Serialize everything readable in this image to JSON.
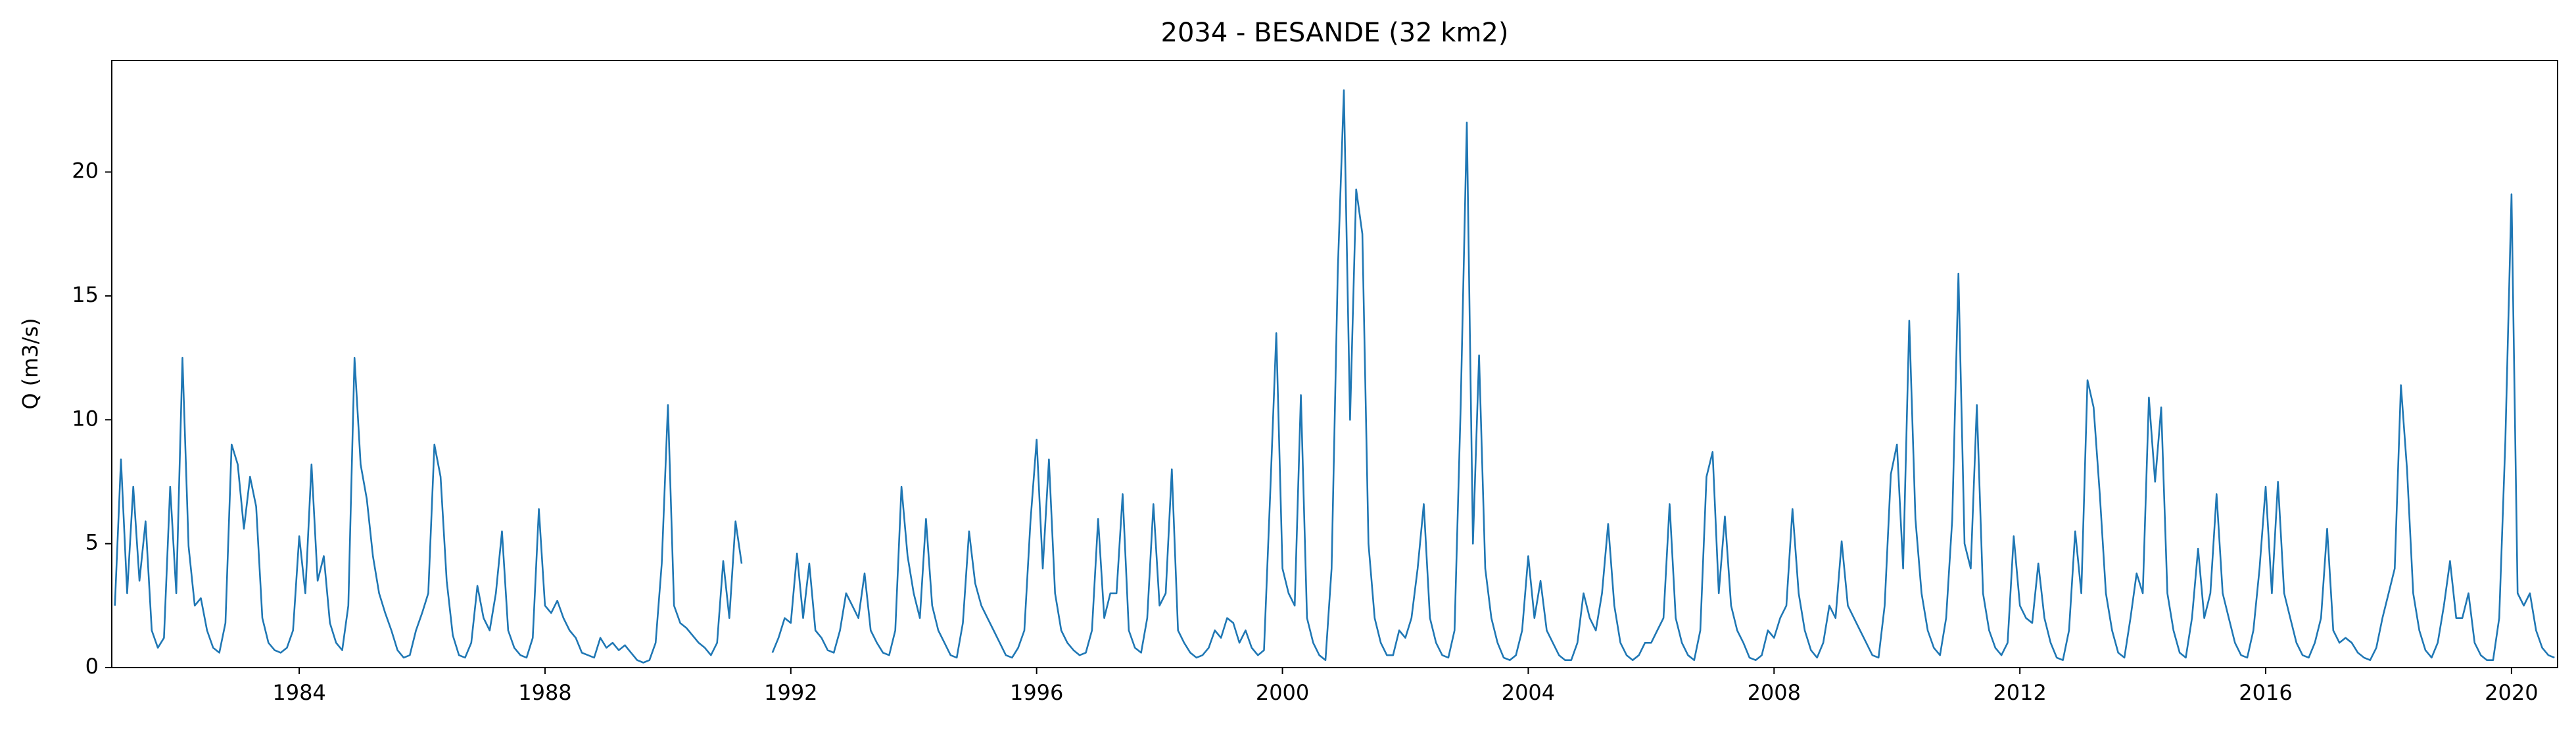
{
  "chart_data": {
    "type": "line",
    "title": "2034 - BESANDE (32 km2)",
    "ylabel": "Q (m3/s)",
    "xlim": [
      1980.95,
      2020.75
    ],
    "xticks": [
      1984,
      1988,
      1992,
      1996,
      2000,
      2004,
      2008,
      2012,
      2016,
      2020
    ],
    "ylim": [
      0,
      24.5
    ],
    "yticks": [
      0,
      5,
      10,
      15,
      20
    ],
    "grid": false,
    "series": [
      {
        "color": "#1f77b4",
        "x": [
          1981.0,
          1981.1,
          1981.2,
          1981.3,
          1981.4,
          1981.5,
          1981.6,
          1981.7,
          1981.8,
          1981.9,
          1982.0,
          1982.1,
          1982.2,
          1982.3,
          1982.4,
          1982.5,
          1982.6,
          1982.7,
          1982.8,
          1982.9,
          1983.0,
          1983.1,
          1983.2,
          1983.3,
          1983.4,
          1983.5,
          1983.6,
          1983.7,
          1983.8,
          1983.9,
          1984.0,
          1984.1,
          1984.2,
          1984.3,
          1984.4,
          1984.5,
          1984.6,
          1984.7,
          1984.8,
          1984.9,
          1985.0,
          1985.1,
          1985.2,
          1985.3,
          1985.4,
          1985.5,
          1985.6,
          1985.7,
          1985.8,
          1985.9,
          1986.0,
          1986.1,
          1986.2,
          1986.3,
          1986.4,
          1986.5,
          1986.6,
          1986.7,
          1986.8,
          1986.9,
          1987.0,
          1987.1,
          1987.2,
          1987.3,
          1987.4,
          1987.5,
          1987.6,
          1987.7,
          1987.8,
          1987.9,
          1988.0,
          1988.1,
          1988.2,
          1988.3,
          1988.4,
          1988.5,
          1988.6,
          1988.7,
          1988.8,
          1988.9,
          1989.0,
          1989.1,
          1989.2,
          1989.3,
          1989.4,
          1989.5,
          1989.6,
          1989.7,
          1989.8,
          1989.9,
          1990.0,
          1990.1,
          1990.2,
          1990.3,
          1990.4,
          1990.5,
          1990.6,
          1990.7,
          1990.8,
          1990.9,
          1991.0,
          1991.1,
          1991.2,
          1991.3,
          1991.4,
          1991.5,
          1991.6,
          1991.7,
          1991.8,
          1991.9,
          1992.0,
          1992.1,
          1992.2,
          1992.3,
          1992.4,
          1992.5,
          1992.6,
          1992.7,
          1992.8,
          1992.9,
          1993.0,
          1993.1,
          1993.2,
          1993.3,
          1993.4,
          1993.5,
          1993.6,
          1993.7,
          1993.8,
          1993.9,
          1994.0,
          1994.1,
          1994.2,
          1994.3,
          1994.4,
          1994.5,
          1994.6,
          1994.7,
          1994.8,
          1994.9,
          1995.0,
          1995.1,
          1995.2,
          1995.3,
          1995.4,
          1995.5,
          1995.6,
          1995.7,
          1995.8,
          1995.9,
          1996.0,
          1996.1,
          1996.2,
          1996.3,
          1996.4,
          1996.5,
          1996.6,
          1996.7,
          1996.8,
          1996.9,
          1997.0,
          1997.1,
          1997.2,
          1997.3,
          1997.4,
          1997.5,
          1997.6,
          1997.7,
          1997.8,
          1997.9,
          1998.0,
          1998.1,
          1998.2,
          1998.3,
          1998.4,
          1998.5,
          1998.6,
          1998.7,
          1998.8,
          1998.9,
          1999.0,
          1999.1,
          1999.2,
          1999.3,
          1999.4,
          1999.5,
          1999.6,
          1999.7,
          1999.8,
          1999.9,
          2000.0,
          2000.1,
          2000.2,
          2000.3,
          2000.4,
          2000.5,
          2000.6,
          2000.7,
          2000.8,
          2000.9,
          2001.0,
          2001.1,
          2001.2,
          2001.3,
          2001.4,
          2001.5,
          2001.6,
          2001.7,
          2001.8,
          2001.9,
          2002.0,
          2002.1,
          2002.2,
          2002.3,
          2002.4,
          2002.5,
          2002.6,
          2002.7,
          2002.8,
          2002.9,
          2003.0,
          2003.1,
          2003.2,
          2003.3,
          2003.4,
          2003.5,
          2003.6,
          2003.7,
          2003.8,
          2003.9,
          2004.0,
          2004.1,
          2004.2,
          2004.3,
          2004.4,
          2004.5,
          2004.6,
          2004.7,
          2004.8,
          2004.9,
          2005.0,
          2005.1,
          2005.2,
          2005.3,
          2005.4,
          2005.5,
          2005.6,
          2005.7,
          2005.8,
          2005.9,
          2006.0,
          2006.1,
          2006.2,
          2006.3,
          2006.4,
          2006.5,
          2006.6,
          2006.7,
          2006.8,
          2006.9,
          2007.0,
          2007.1,
          2007.2,
          2007.3,
          2007.4,
          2007.5,
          2007.6,
          2007.7,
          2007.8,
          2007.9,
          2008.0,
          2008.1,
          2008.2,
          2008.3,
          2008.4,
          2008.5,
          2008.6,
          2008.7,
          2008.8,
          2008.9,
          2009.0,
          2009.1,
          2009.2,
          2009.3,
          2009.4,
          2009.5,
          2009.6,
          2009.7,
          2009.8,
          2009.9,
          2010.0,
          2010.1,
          2010.2,
          2010.3,
          2010.4,
          2010.5,
          2010.6,
          2010.7,
          2010.8,
          2010.9,
          2011.0,
          2011.1,
          2011.2,
          2011.3,
          2011.4,
          2011.5,
          2011.6,
          2011.7,
          2011.8,
          2011.9,
          2012.0,
          2012.1,
          2012.2,
          2012.3,
          2012.4,
          2012.5,
          2012.6,
          2012.7,
          2012.8,
          2012.9,
          2013.0,
          2013.1,
          2013.2,
          2013.3,
          2013.4,
          2013.5,
          2013.6,
          2013.7,
          2013.8,
          2013.9,
          2014.0,
          2014.1,
          2014.2,
          2014.3,
          2014.4,
          2014.5,
          2014.6,
          2014.7,
          2014.8,
          2014.9,
          2015.0,
          2015.1,
          2015.2,
          2015.3,
          2015.4,
          2015.5,
          2015.6,
          2015.7,
          2015.8,
          2015.9,
          2016.0,
          2016.1,
          2016.2,
          2016.3,
          2016.4,
          2016.5,
          2016.6,
          2016.7,
          2016.8,
          2016.9,
          2017.0,
          2017.1,
          2017.2,
          2017.3,
          2017.4,
          2017.5,
          2017.6,
          2017.7,
          2017.8,
          2017.9,
          2018.0,
          2018.1,
          2018.2,
          2018.3,
          2018.4,
          2018.5,
          2018.6,
          2018.7,
          2018.8,
          2018.9,
          2019.0,
          2019.1,
          2019.2,
          2019.3,
          2019.4,
          2019.5,
          2019.6,
          2019.7,
          2019.8,
          2019.9,
          2020.0,
          2020.1,
          2020.2,
          2020.3,
          2020.4,
          2020.5,
          2020.6,
          2020.7
        ],
        "values": [
          2.5,
          8.4,
          3,
          7.3,
          3.5,
          5.9,
          1.5,
          0.8,
          1.2,
          7.3,
          3,
          12.5,
          4.9,
          2.5,
          2.8,
          1.5,
          0.8,
          0.6,
          1.8,
          9,
          8.2,
          5.6,
          7.7,
          6.5,
          2,
          1,
          0.7,
          0.6,
          0.8,
          1.5,
          5.3,
          3,
          8.2,
          3.5,
          4.5,
          1.8,
          1,
          0.7,
          2.5,
          12.5,
          8.2,
          6.8,
          4.5,
          3,
          2.2,
          1.5,
          0.7,
          0.4,
          0.5,
          1.5,
          2.2,
          3,
          9,
          7.7,
          3.5,
          1.3,
          0.5,
          0.4,
          1,
          3.3,
          2,
          1.5,
          3,
          5.5,
          1.5,
          0.8,
          0.5,
          0.4,
          1.2,
          6.4,
          2.5,
          2.2,
          2.7,
          2,
          1.5,
          1.2,
          0.6,
          0.5,
          0.4,
          1.2,
          0.8,
          1,
          0.7,
          0.9,
          0.6,
          0.3,
          0.2,
          0.3,
          1,
          4.2,
          10.6,
          2.5,
          1.8,
          1.6,
          1.3,
          1,
          0.8,
          0.5,
          1,
          4.3,
          2,
          5.9,
          4.2,
          null,
          null,
          null,
          null,
          0.6,
          1.2,
          2,
          1.8,
          4.6,
          2,
          4.2,
          1.5,
          1.2,
          0.7,
          0.6,
          1.5,
          3,
          2.5,
          2,
          3.8,
          1.5,
          1,
          0.6,
          0.5,
          1.5,
          7.3,
          4.5,
          3,
          2,
          6,
          2.5,
          1.5,
          1,
          0.5,
          0.4,
          1.8,
          5.5,
          3.4,
          2.5,
          2,
          1.5,
          1,
          0.5,
          0.4,
          0.8,
          1.5,
          5.9,
          9.2,
          4,
          8.4,
          3,
          1.5,
          1,
          0.7,
          0.5,
          0.6,
          1.5,
          6,
          2,
          3,
          3,
          7,
          1.5,
          0.8,
          0.6,
          2,
          6.6,
          2.5,
          3,
          8,
          1.5,
          1,
          0.6,
          0.4,
          0.5,
          0.8,
          1.5,
          1.2,
          2,
          1.8,
          1,
          1.5,
          0.8,
          0.5,
          0.7,
          7,
          13.5,
          4,
          3,
          2.5,
          11,
          2,
          1,
          0.5,
          0.3,
          4,
          16,
          23.3,
          10,
          19.3,
          17.5,
          5,
          2,
          1,
          0.5,
          0.5,
          1.5,
          1.2,
          2,
          4,
          6.6,
          2,
          1,
          0.5,
          0.4,
          1.5,
          10.5,
          22,
          5,
          12.6,
          4,
          2,
          1,
          0.4,
          0.3,
          0.5,
          1.5,
          4.5,
          2,
          3.5,
          1.5,
          1,
          0.5,
          0.3,
          0.3,
          1,
          3,
          2,
          1.5,
          3,
          5.8,
          2.5,
          1,
          0.5,
          0.3,
          0.5,
          1,
          1,
          1.5,
          2,
          6.6,
          2,
          1,
          0.5,
          0.3,
          1.5,
          7.7,
          8.7,
          3,
          6.1,
          2.5,
          1.5,
          1,
          0.4,
          0.3,
          0.5,
          1.5,
          1.2,
          2,
          2.5,
          6.4,
          3,
          1.5,
          0.7,
          0.4,
          1,
          2.5,
          2,
          5.1,
          2.5,
          2,
          1.5,
          1,
          0.5,
          0.4,
          2.5,
          7.8,
          9,
          4,
          14,
          6,
          3,
          1.5,
          0.8,
          0.5,
          2,
          6,
          15.9,
          5,
          4,
          10.6,
          3,
          1.5,
          0.8,
          0.5,
          1,
          5.3,
          2.5,
          2,
          1.8,
          4.2,
          2,
          1,
          0.4,
          0.3,
          1.5,
          5.5,
          3,
          11.6,
          10.5,
          7,
          3,
          1.5,
          0.6,
          0.4,
          2,
          3.8,
          3,
          10.9,
          7.5,
          10.5,
          3,
          1.5,
          0.6,
          0.4,
          2,
          4.8,
          2,
          3,
          7,
          3,
          2,
          1,
          0.5,
          0.4,
          1.5,
          4,
          7.3,
          3,
          7.5,
          3,
          2,
          1,
          0.5,
          0.4,
          1,
          2,
          5.6,
          1.5,
          1,
          1.2,
          1,
          0.6,
          0.4,
          0.3,
          0.8,
          2,
          3,
          4,
          11.4,
          8,
          3,
          1.5,
          0.7,
          0.4,
          1,
          2.5,
          4.3,
          2,
          2,
          3,
          1,
          0.5,
          0.3,
          0.3,
          2,
          9.2,
          19.1,
          3,
          2.5,
          3,
          1.5,
          0.8,
          0.5,
          0.4
        ]
      }
    ]
  }
}
